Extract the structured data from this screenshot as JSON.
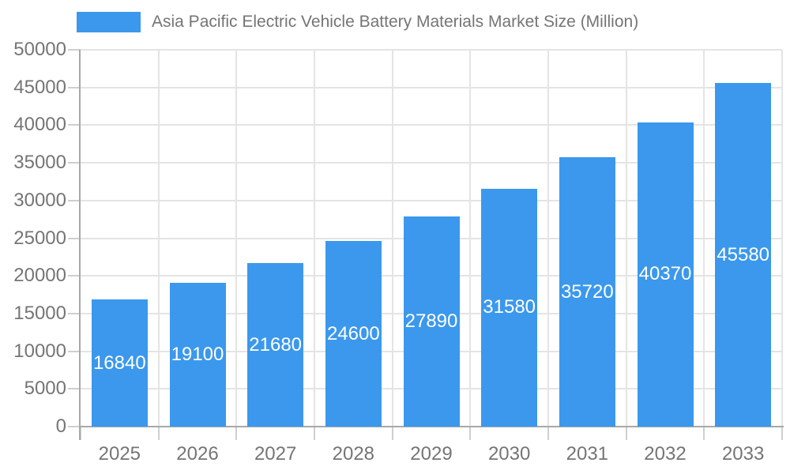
{
  "chart_data": {
    "type": "bar",
    "title": "Asia Pacific Electric Vehicle Battery Materials Market Size (Million)",
    "legend_entries": [
      "Asia Pacific Electric Vehicle Battery Materials Market Size (Million)"
    ],
    "legend_position": "top-left",
    "categories": [
      "2025",
      "2026",
      "2027",
      "2028",
      "2029",
      "2030",
      "2031",
      "2032",
      "2033"
    ],
    "series": [
      {
        "name": "Asia Pacific Electric Vehicle Battery Materials Market Size (Million)",
        "values": [
          16840,
          19100,
          21680,
          24600,
          27890,
          31580,
          35720,
          40370,
          45580
        ]
      }
    ],
    "value_labels": [
      "16840",
      "19100",
      "21680",
      "24600",
      "27890",
      "31580",
      "35720",
      "40370",
      "45580"
    ],
    "value_label_placement": "inside-center",
    "xlabel": "",
    "ylabel": "",
    "ylim": [
      0,
      50000
    ],
    "ytick_step": 5000,
    "ytick_labels": [
      "0",
      "5000",
      "10000",
      "15000",
      "20000",
      "25000",
      "30000",
      "35000",
      "40000",
      "45000",
      "50000"
    ],
    "grid": true,
    "colors": {
      "bar": "#3b98ec",
      "grid": "#e4e4e4",
      "axis": "#a8a8a8",
      "tick": "#cfcfcf",
      "text": "#757575",
      "value_label": "#ffffff",
      "background": "#ffffff"
    }
  }
}
